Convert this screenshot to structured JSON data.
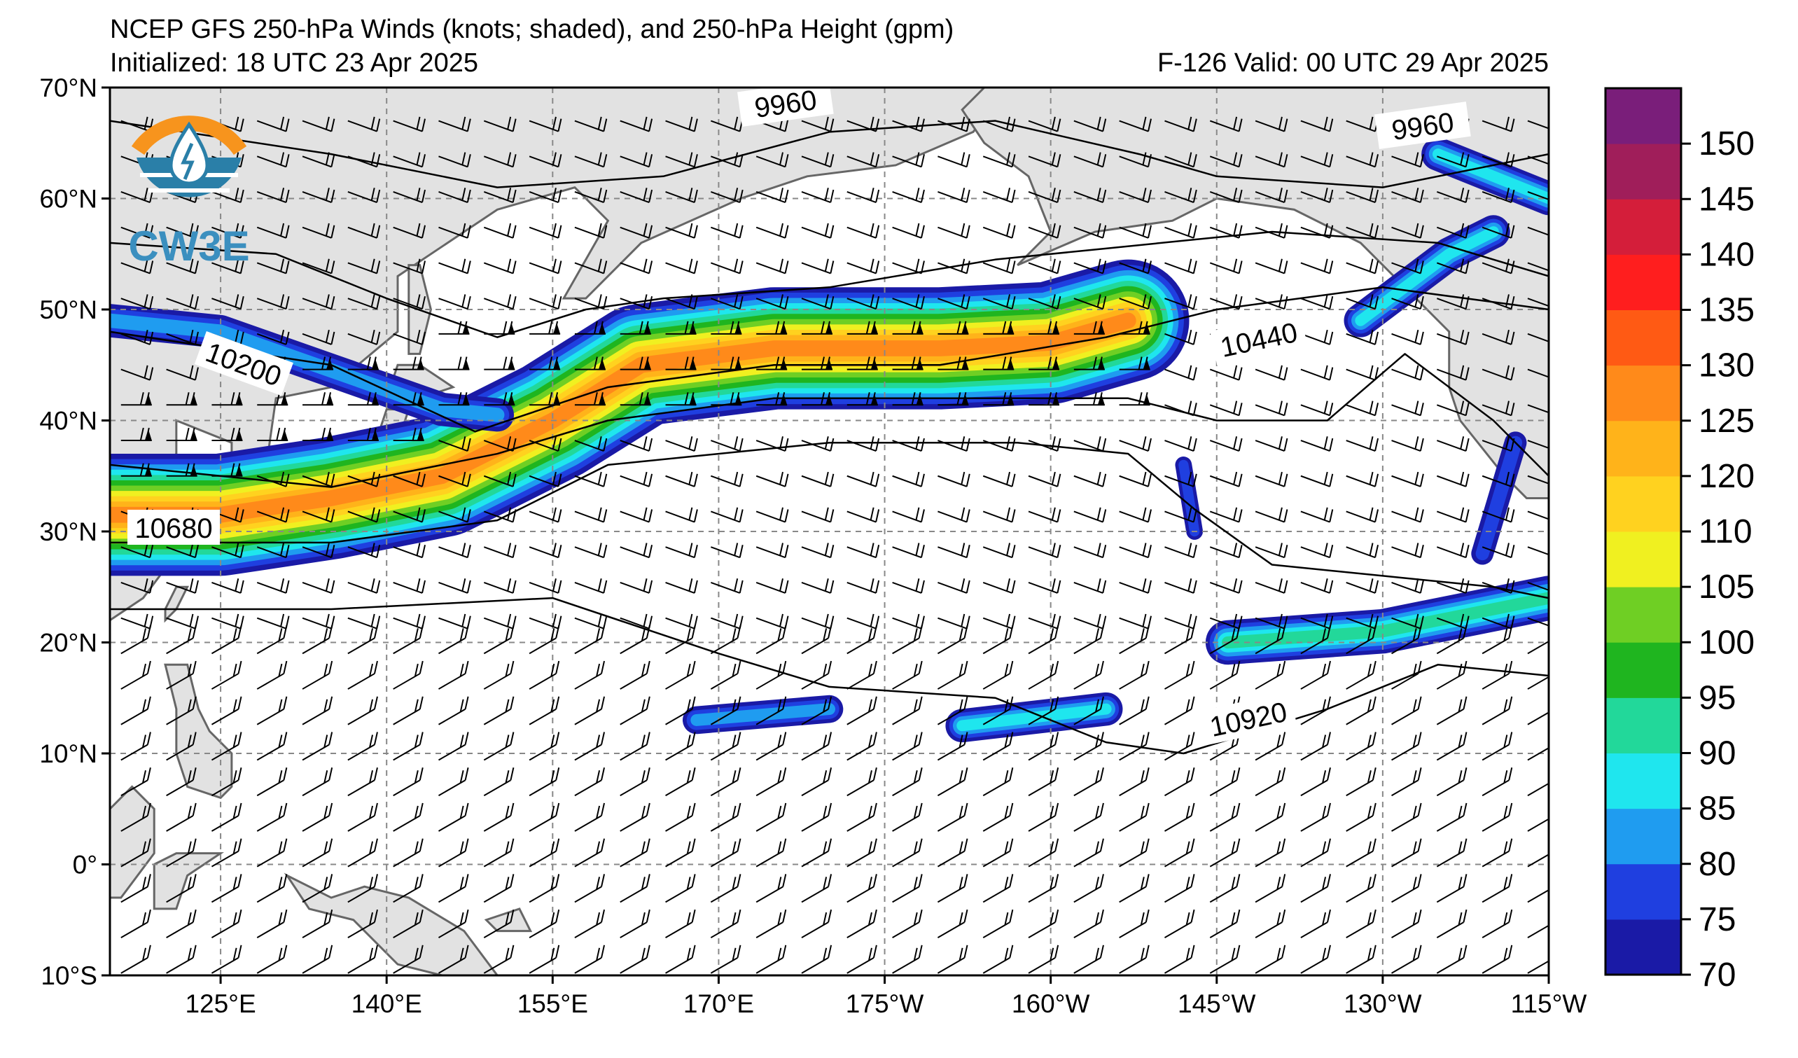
{
  "header": {
    "title": "NCEP GFS 250-hPa Winds (knots; shaded), and 250-hPa Height (gpm)",
    "initialized": "Initialized: 18 UTC 23 Apr 2025",
    "forecast": "F-126  Valid: 00 UTC 29 Apr 2025"
  },
  "logo": {
    "text": "CW3E",
    "icon": "water-drop-lightning-icon"
  },
  "map": {
    "lat_labels": [
      "70°N",
      "60°N",
      "50°N",
      "40°N",
      "30°N",
      "20°N",
      "10°N",
      "0°",
      "10°S"
    ],
    "lon_labels": [
      "125°E",
      "140°E",
      "155°E",
      "170°E",
      "175°W",
      "160°W",
      "145°W",
      "130°W",
      "115°W"
    ],
    "contour_labels": [
      "9960",
      "9960",
      "10200",
      "10440",
      "10680",
      "10920"
    ]
  },
  "colorbar": {
    "ticks": [
      "70",
      "75",
      "80",
      "85",
      "90",
      "95",
      "100",
      "105",
      "110",
      "120",
      "125",
      "130",
      "135",
      "140",
      "145",
      "150"
    ],
    "colors": [
      "#1a1aa6",
      "#1f3fe0",
      "#1f9cf0",
      "#1fe6ee",
      "#22d89a",
      "#1fb51f",
      "#6fcf24",
      "#f0f020",
      "#ffd21f",
      "#ffb31a",
      "#ff8a1a",
      "#ff5a14",
      "#ff1e1e",
      "#d41e3a",
      "#a01e5a",
      "#7a1e7a"
    ]
  }
}
